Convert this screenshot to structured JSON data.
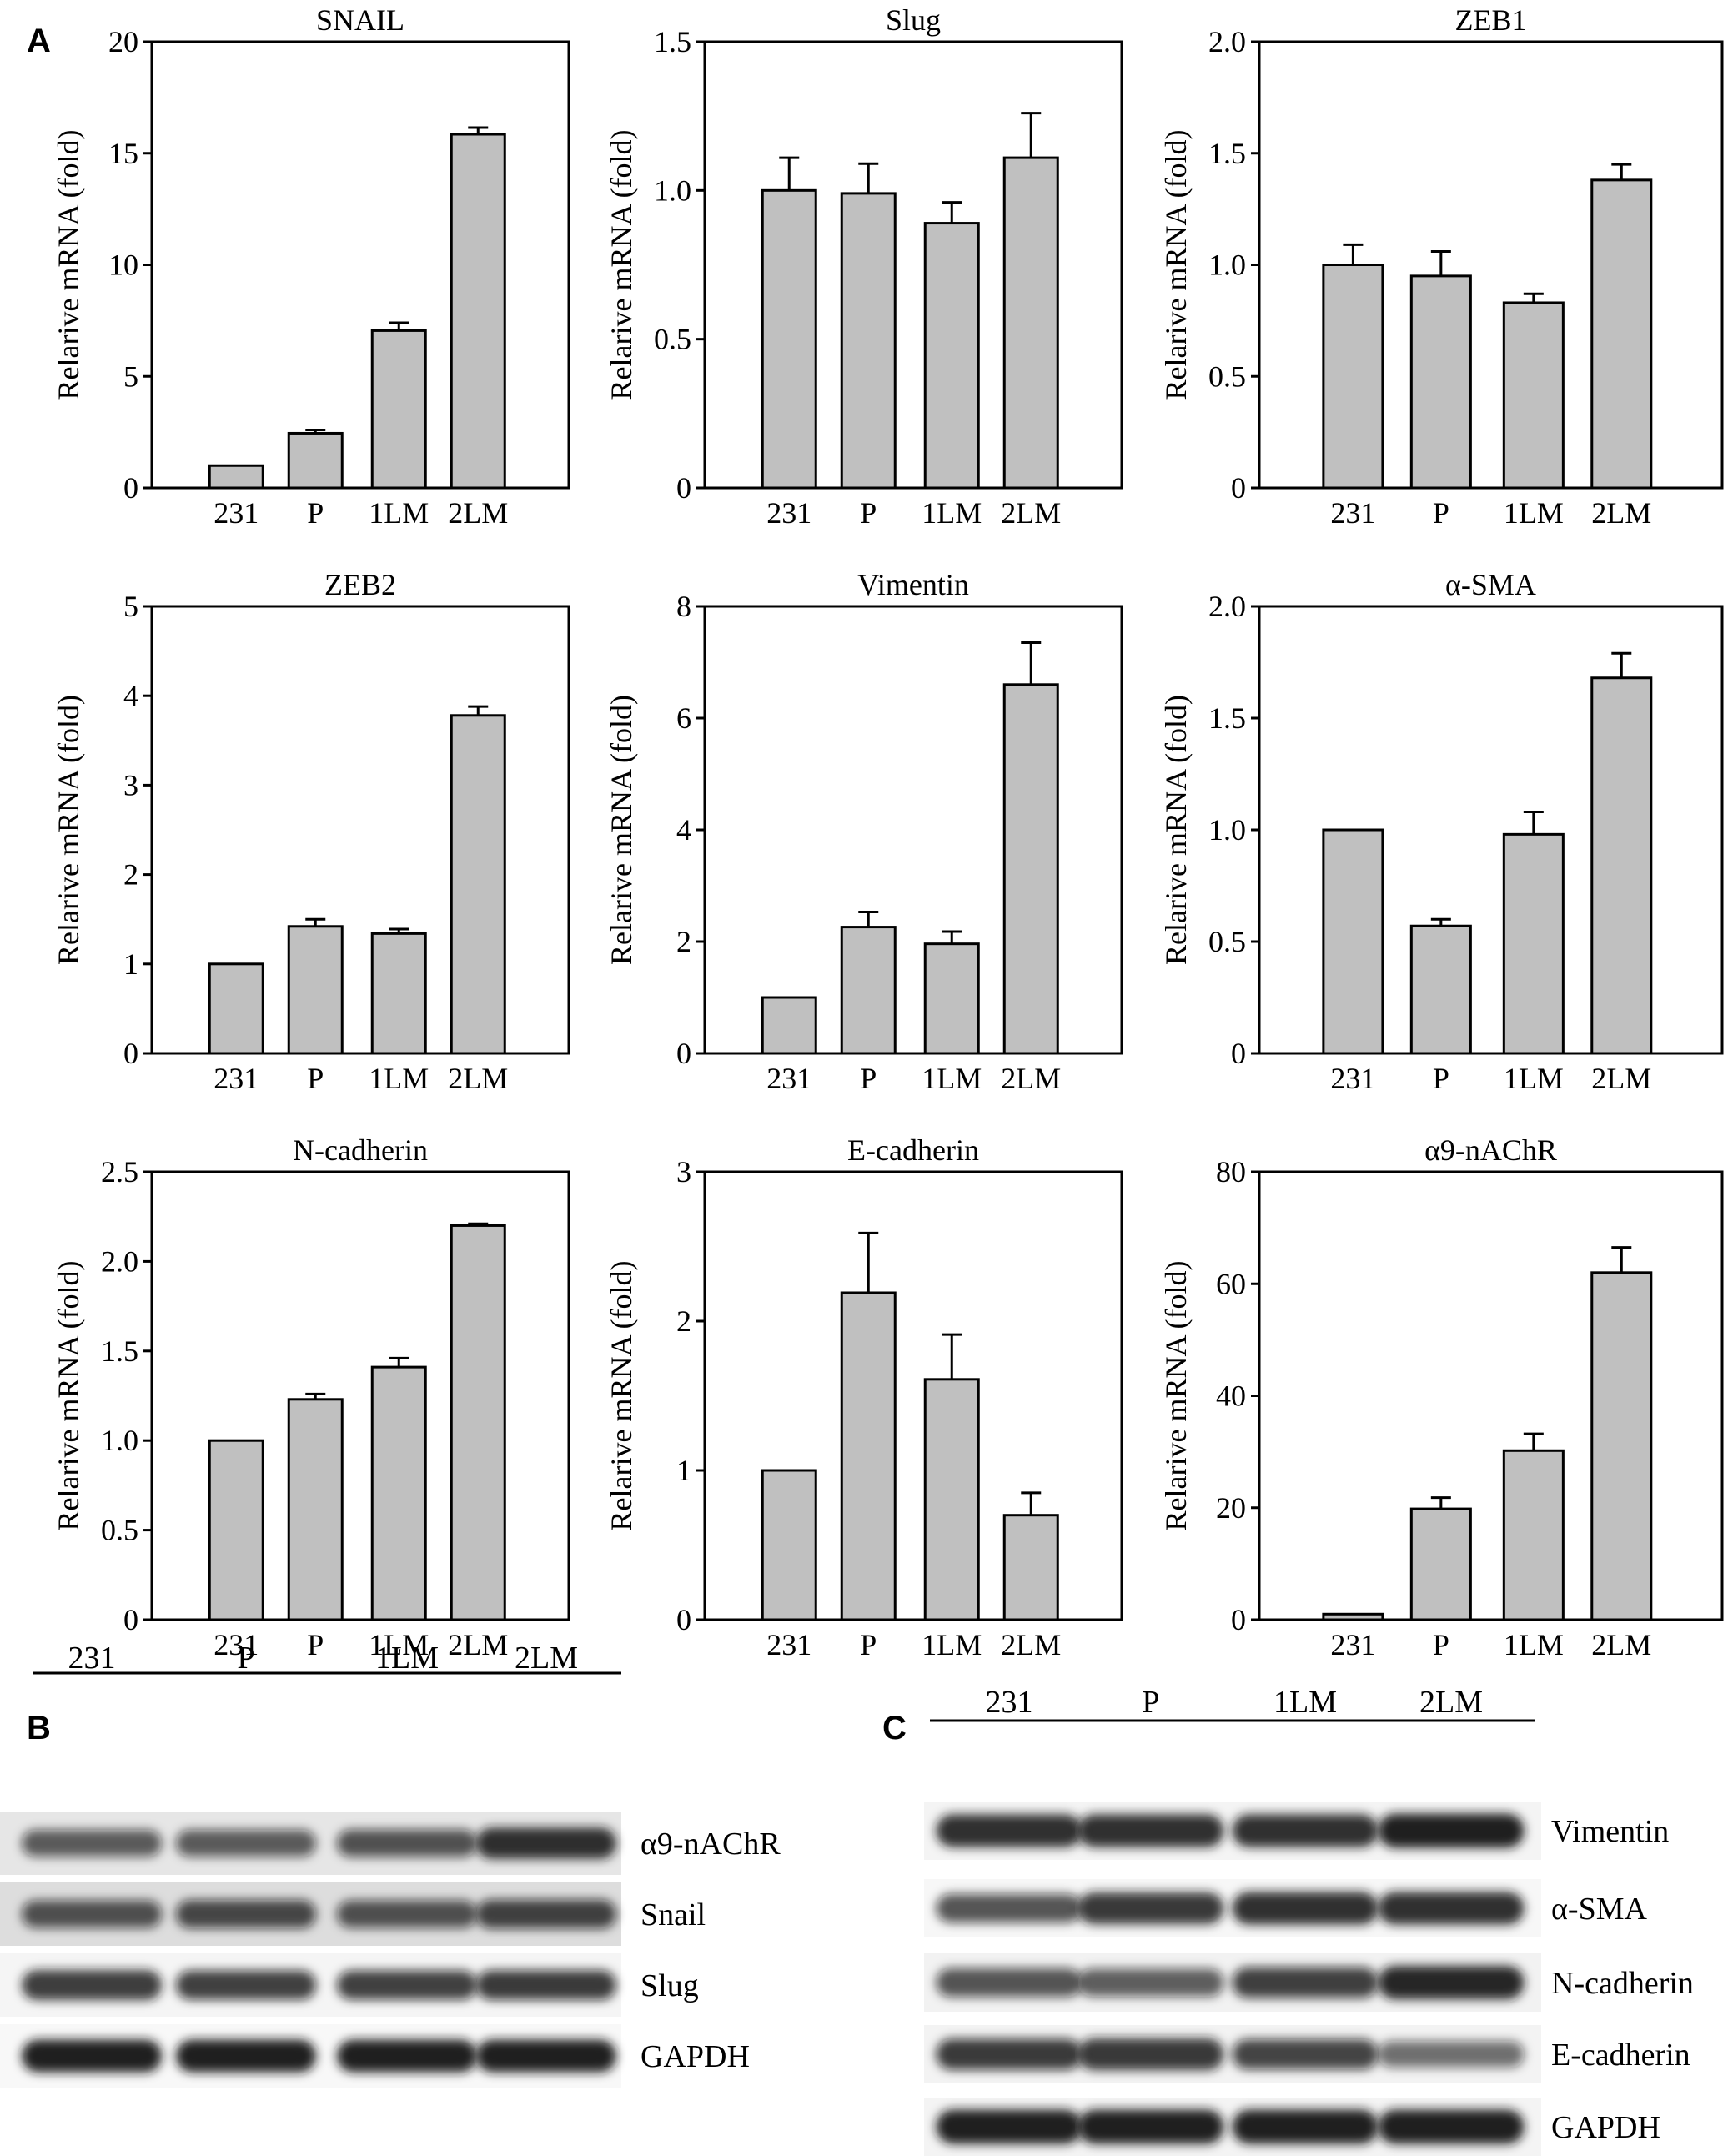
{
  "panels": {
    "A": "A",
    "B": "B",
    "C": "C"
  },
  "common": {
    "ylabel": "Relarive mRNA (fold)",
    "categories": [
      "231",
      "P",
      "1LM",
      "2LM"
    ]
  },
  "chart_data": [
    {
      "type": "bar",
      "title": "SNAIL",
      "xlabel": "",
      "ylabel": "Relarive mRNA (fold)",
      "categories": [
        "231",
        "P",
        "1LM",
        "2LM"
      ],
      "values": [
        1.0,
        2.45,
        7.05,
        15.85
      ],
      "errors": [
        0,
        0.15,
        0.35,
        0.3
      ],
      "ylim": [
        0,
        20
      ],
      "yticks": [
        0,
        5,
        10,
        15,
        20
      ],
      "ytick_labels": [
        "0",
        "5",
        "10",
        "15",
        "20"
      ]
    },
    {
      "type": "bar",
      "title": "Slug",
      "xlabel": "",
      "ylabel": "Relarive mRNA (fold)",
      "categories": [
        "231",
        "P",
        "1LM",
        "2LM"
      ],
      "values": [
        1.0,
        0.99,
        0.89,
        1.11
      ],
      "errors": [
        0.11,
        0.1,
        0.07,
        0.15
      ],
      "ylim": [
        0,
        1.5
      ],
      "yticks": [
        0,
        0.5,
        1.0,
        1.5
      ],
      "ytick_labels": [
        "0",
        "0.5",
        "1.0",
        "1.5"
      ]
    },
    {
      "type": "bar",
      "title": "ZEB1",
      "xlabel": "",
      "ylabel": "Relarive mRNA (fold)",
      "categories": [
        "231",
        "P",
        "1LM",
        "2LM"
      ],
      "values": [
        1.0,
        0.95,
        0.83,
        1.38
      ],
      "errors": [
        0.09,
        0.11,
        0.04,
        0.07
      ],
      "ylim": [
        0,
        2.0
      ],
      "yticks": [
        0,
        0.5,
        1.0,
        1.5,
        2.0
      ],
      "ytick_labels": [
        "0",
        "0.5",
        "1.0",
        "1.5",
        "2.0"
      ]
    },
    {
      "type": "bar",
      "title": "ZEB2",
      "xlabel": "",
      "ylabel": "Relarive mRNA (fold)",
      "categories": [
        "231",
        "P",
        "1LM",
        "2LM"
      ],
      "values": [
        1.0,
        1.42,
        1.34,
        3.78
      ],
      "errors": [
        0,
        0.08,
        0.05,
        0.1
      ],
      "ylim": [
        0,
        5
      ],
      "yticks": [
        0,
        1,
        2,
        3,
        4,
        5
      ],
      "ytick_labels": [
        "0",
        "1",
        "2",
        "3",
        "4",
        "5"
      ]
    },
    {
      "type": "bar",
      "title": "Vimentin",
      "xlabel": "",
      "ylabel": "Relarive mRNA (fold)",
      "categories": [
        "231",
        "P",
        "1LM",
        "2LM"
      ],
      "values": [
        1.0,
        2.26,
        1.96,
        6.6
      ],
      "errors": [
        0,
        0.27,
        0.22,
        0.75
      ],
      "ylim": [
        0,
        8
      ],
      "yticks": [
        0,
        2,
        4,
        6,
        8
      ],
      "ytick_labels": [
        "0",
        "2",
        "4",
        "6",
        "8"
      ]
    },
    {
      "type": "bar",
      "title": "α-SMA",
      "xlabel": "",
      "ylabel": "Relarive mRNA (fold)",
      "categories": [
        "231",
        "P",
        "1LM",
        "2LM"
      ],
      "values": [
        1.0,
        0.57,
        0.98,
        1.68
      ],
      "errors": [
        0,
        0.03,
        0.1,
        0.11
      ],
      "ylim": [
        0,
        2.0
      ],
      "yticks": [
        0,
        0.5,
        1.0,
        1.5,
        2.0
      ],
      "ytick_labels": [
        "0",
        "0.5",
        "1.0",
        "1.5",
        "2.0"
      ]
    },
    {
      "type": "bar",
      "title": "N-cadherin",
      "xlabel": "",
      "ylabel": "Relarive mRNA (fold)",
      "categories": [
        "231",
        "P",
        "1LM",
        "2LM"
      ],
      "values": [
        1.0,
        1.23,
        1.41,
        2.2
      ],
      "errors": [
        0,
        0.03,
        0.05,
        0.01
      ],
      "ylim": [
        0,
        2.5
      ],
      "yticks": [
        0,
        0.5,
        1.0,
        1.5,
        2.0,
        2.5
      ],
      "ytick_labels": [
        "0",
        "0.5",
        "1.0",
        "1.5",
        "2.0",
        "2.5"
      ]
    },
    {
      "type": "bar",
      "title": "E-cadherin",
      "xlabel": "",
      "ylabel": "Relarive mRNA (fold)",
      "categories": [
        "231",
        "P",
        "1LM",
        "2LM"
      ],
      "values": [
        1.0,
        2.19,
        1.61,
        0.7
      ],
      "errors": [
        0,
        0.4,
        0.3,
        0.15
      ],
      "ylim": [
        0,
        3
      ],
      "yticks": [
        0,
        1,
        2,
        3
      ],
      "ytick_labels": [
        "0",
        "1",
        "2",
        "3"
      ]
    },
    {
      "type": "bar",
      "title": "α9-nAChR",
      "xlabel": "",
      "ylabel": "Relarive mRNA (fold)",
      "categories": [
        "231",
        "P",
        "1LM",
        "2LM"
      ],
      "values": [
        1.0,
        19.8,
        30.2,
        62
      ],
      "errors": [
        0,
        2,
        3,
        4.5
      ],
      "ylim": [
        0,
        80
      ],
      "yticks": [
        0,
        20,
        40,
        60,
        80
      ],
      "ytick_labels": [
        "0",
        "20",
        "40",
        "60",
        "80"
      ]
    }
  ],
  "blots": {
    "B": {
      "lanes": [
        "231",
        "P",
        "1LM",
        "2LM"
      ],
      "rows": [
        {
          "label": "α9-nAChR",
          "intensities": [
            0.55,
            0.55,
            0.6,
            0.85
          ],
          "bg": "#e6e6e6"
        },
        {
          "label": "Snail",
          "intensities": [
            0.6,
            0.65,
            0.6,
            0.7
          ],
          "bg": "#dddddd"
        },
        {
          "label": "Slug",
          "intensities": [
            0.78,
            0.72,
            0.72,
            0.75
          ],
          "bg": "#f5f5f5"
        },
        {
          "label": "GAPDH",
          "intensities": [
            0.95,
            0.95,
            0.95,
            0.95
          ],
          "bg": "#f8f8f8"
        }
      ]
    },
    "C": {
      "lanes": [
        "231",
        "P",
        "1LM",
        "2LM"
      ],
      "rows": [
        {
          "label": "Vimentin",
          "intensities": [
            0.85,
            0.85,
            0.85,
            0.95
          ],
          "bg": "#f4f4f4"
        },
        {
          "label": "α-SMA",
          "intensities": [
            0.6,
            0.8,
            0.85,
            0.85
          ],
          "bg": "#f7f7f7"
        },
        {
          "label": "N-cadherin",
          "intensities": [
            0.6,
            0.55,
            0.72,
            0.9
          ],
          "bg": "#f2f2f2"
        },
        {
          "label": "E-cadherin",
          "intensities": [
            0.75,
            0.8,
            0.7,
            0.45
          ],
          "bg": "#f3f3f3"
        },
        {
          "label": "GAPDH",
          "intensities": [
            0.95,
            0.95,
            0.95,
            0.95
          ],
          "bg": "#f4f4f4"
        }
      ]
    }
  },
  "colors": {
    "bar": "#c0c0c0",
    "axis": "#000000",
    "band": "#141414"
  }
}
